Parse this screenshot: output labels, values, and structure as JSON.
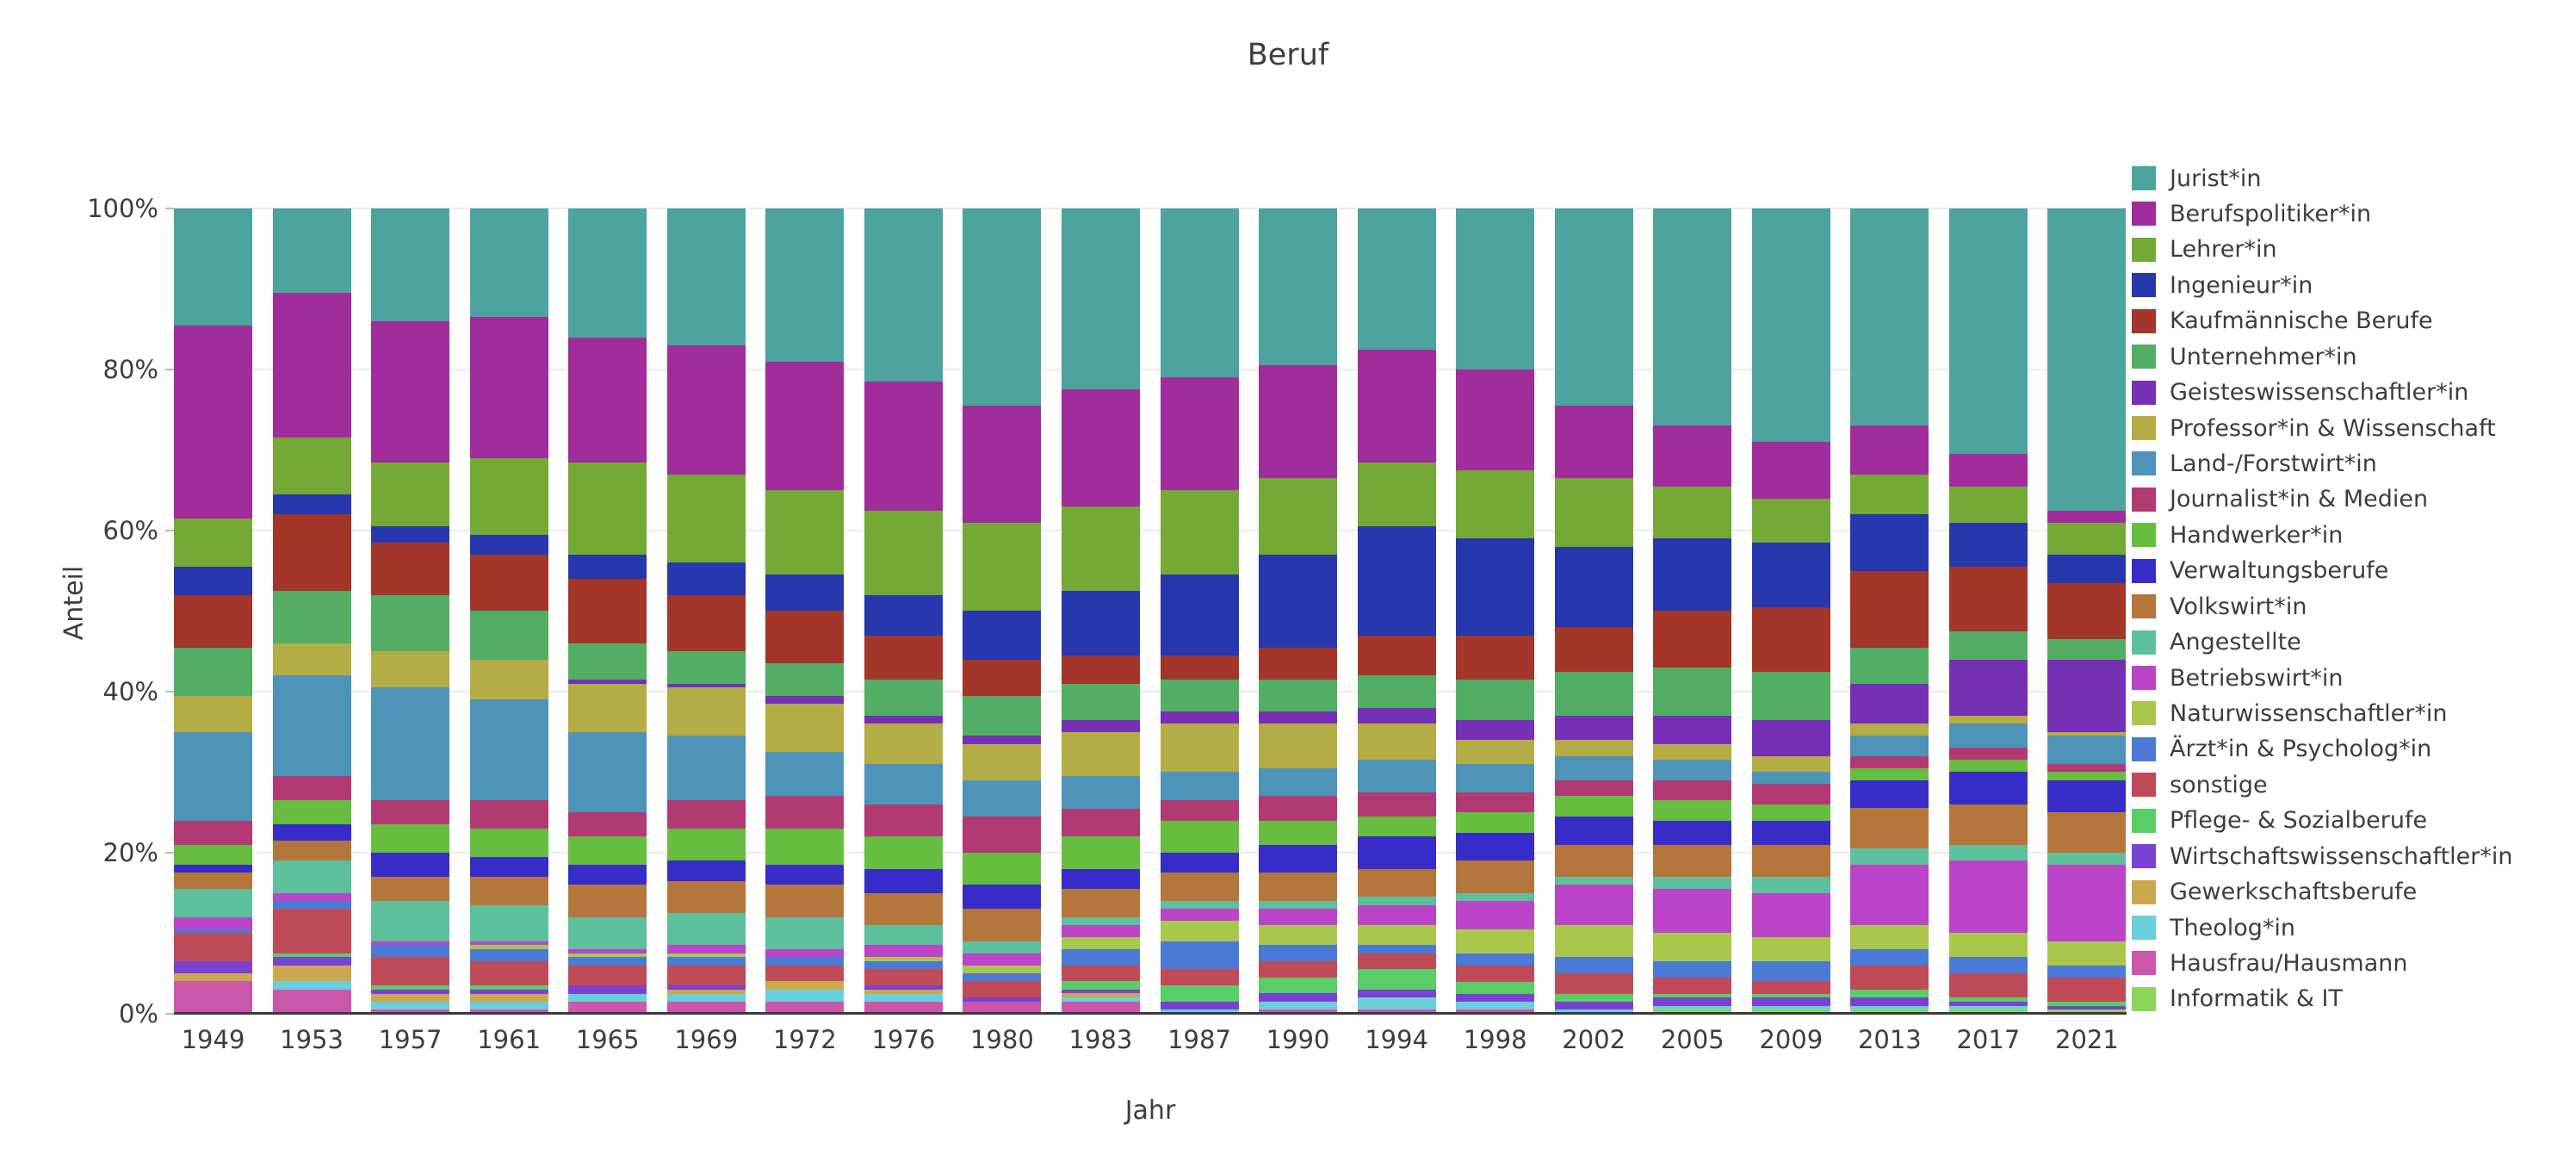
{
  "chart_data": {
    "type": "bar",
    "stacked": true,
    "normalized": "percent",
    "title": "Beruf",
    "xlabel": "Jahr",
    "ylabel": "Anteil",
    "ylim": [
      0,
      100
    ],
    "grid": true,
    "legend_position": "right",
    "grid_color": "#ebebeb",
    "axis_line_color": "#3a3a3a",
    "text_color": "#3d3d3d",
    "ytick_values": [
      0,
      20,
      40,
      60,
      80,
      100
    ],
    "ytick_labels": [
      "0%",
      "20%",
      "40%",
      "60%",
      "80%",
      "100%"
    ],
    "categories": [
      "1949",
      "1953",
      "1957",
      "1961",
      "1965",
      "1969",
      "1972",
      "1976",
      "1980",
      "1983",
      "1987",
      "1990",
      "1994",
      "1998",
      "2002",
      "2005",
      "2009",
      "2013",
      "2017",
      "2021"
    ],
    "series": [
      {
        "name": "Jurist*in",
        "color": "#4da39e",
        "values": [
          14.5,
          10.5,
          14,
          13.5,
          16,
          17,
          19,
          21.5,
          24.5,
          22.5,
          21,
          19.5,
          17.5,
          20,
          24.5,
          27,
          29,
          27,
          30.5,
          37.5
        ]
      },
      {
        "name": "Berufspolitiker*in",
        "color": "#a12c9c",
        "values": [
          24,
          18,
          17.5,
          17.5,
          15.5,
          16,
          16,
          16,
          14.5,
          14.5,
          14,
          14,
          14,
          12.5,
          9,
          7.5,
          7,
          6,
          4,
          1.5
        ]
      },
      {
        "name": "Lehrer*in",
        "color": "#74a936",
        "values": [
          6,
          7,
          8,
          9.5,
          11.5,
          11,
          10.5,
          10.5,
          11,
          10.5,
          10.5,
          9.5,
          8,
          8.5,
          8.5,
          6.5,
          5.5,
          5,
          4.5,
          4
        ]
      },
      {
        "name": "Ingenieur*in",
        "color": "#2737ae",
        "values": [
          3.5,
          2.5,
          2,
          2.5,
          3,
          4,
          4.5,
          5,
          6,
          8,
          10,
          11.5,
          13.5,
          12,
          10,
          9,
          8,
          7,
          5.5,
          3.5
        ]
      },
      {
        "name": "Kaufmännische Berufe",
        "color": "#a33529",
        "values": [
          6.5,
          9.5,
          6.5,
          7,
          8,
          7,
          6.5,
          5.5,
          4.5,
          3.5,
          3,
          4,
          5,
          5.5,
          5.5,
          7,
          8,
          9.5,
          8,
          7
        ]
      },
      {
        "name": "Unternehmer*in",
        "color": "#52ae64",
        "values": [
          6,
          6.5,
          7,
          6,
          4.5,
          4,
          4,
          4.5,
          5,
          4.5,
          4,
          4,
          4,
          5,
          5.5,
          6,
          6,
          4.5,
          3.5,
          2.5
        ]
      },
      {
        "name": "Geisteswissenschaftler*in",
        "color": "#7530b6",
        "values": [
          0,
          0,
          0,
          0,
          0.5,
          0.5,
          1,
          1,
          1,
          1.5,
          1.5,
          1.5,
          2,
          2.5,
          3,
          3.5,
          4.5,
          5,
          7,
          9
        ]
      },
      {
        "name": "Professor*in & Wissenschaft",
        "color": "#b4ac44",
        "values": [
          4.5,
          4,
          4.5,
          5,
          6,
          6,
          6,
          5,
          4.5,
          5.5,
          6,
          5.5,
          4.5,
          3,
          2,
          2,
          2,
          1.5,
          1,
          0.5
        ]
      },
      {
        "name": "Land-/Forstwirt*in",
        "color": "#4d94b8",
        "values": [
          11,
          12.5,
          14,
          12.5,
          10,
          8,
          5.5,
          5,
          4.5,
          4,
          3.5,
          3.5,
          4,
          3.5,
          3,
          2.5,
          1.5,
          2.5,
          3,
          3.5
        ]
      },
      {
        "name": "Journalist*in & Medien",
        "color": "#b23a72",
        "values": [
          3,
          3,
          3,
          3.5,
          3,
          3.5,
          4,
          4,
          4.5,
          3.5,
          2.5,
          3,
          3,
          2.5,
          2,
          2.5,
          2.5,
          1.5,
          1.5,
          1
        ]
      },
      {
        "name": "Handwerker*in",
        "color": "#66bd3f",
        "values": [
          2.5,
          3,
          3.5,
          3.5,
          3.5,
          4,
          4.5,
          4,
          4,
          4,
          4,
          3,
          2.5,
          2.5,
          2.5,
          2.5,
          2,
          1.5,
          1.5,
          1
        ]
      },
      {
        "name": "Verwaltungsberufe",
        "color": "#382cc8",
        "values": [
          1,
          2,
          3,
          2.5,
          2.5,
          2.5,
          2.5,
          3,
          3,
          2.5,
          2.5,
          3.5,
          4,
          3.5,
          3.5,
          3,
          3,
          3.5,
          4,
          4
        ]
      },
      {
        "name": "Volkswirt*in",
        "color": "#b5763b",
        "values": [
          2,
          2.5,
          3,
          3.5,
          4,
          4,
          4,
          4,
          4,
          3.5,
          3.5,
          3.5,
          3.5,
          4,
          4,
          4,
          4,
          5,
          5,
          5
        ]
      },
      {
        "name": "Angestellte",
        "color": "#5cc09c",
        "values": [
          3.5,
          4,
          5,
          4.5,
          4,
          4,
          4,
          2.5,
          1.5,
          1,
          1,
          1,
          1,
          1,
          1,
          1.5,
          2,
          2,
          2,
          1.5
        ]
      },
      {
        "name": "Betriebswirt*in",
        "color": "#bb44c8",
        "values": [
          1.5,
          1,
          0.5,
          0.5,
          0.5,
          1,
          1,
          1.5,
          1.5,
          1.5,
          1.5,
          2,
          2.5,
          3.5,
          5,
          5.5,
          5.5,
          7.5,
          9,
          9.5
        ]
      },
      {
        "name": "Naturwissenschaftler*in",
        "color": "#a9c84b",
        "values": [
          0,
          0,
          0,
          0.5,
          0.5,
          0.5,
          0,
          0.5,
          1,
          1.5,
          2.5,
          2.5,
          2.5,
          3,
          4,
          3.5,
          3,
          3,
          3,
          3
        ]
      },
      {
        "name": "Ärzt*in & Psycholog*in",
        "color": "#4b7ad6",
        "values": [
          0.5,
          1,
          1.5,
          1.5,
          1,
          1,
          1,
          1,
          1,
          2,
          3.5,
          2,
          1,
          1.5,
          2,
          2,
          2.5,
          2,
          2,
          1.5
        ]
      },
      {
        "name": "sonstige",
        "color": "#c04b58",
        "values": [
          3.5,
          5.5,
          3.5,
          3,
          2.5,
          2.5,
          2,
          2,
          2,
          2,
          2,
          2,
          2,
          2,
          2.5,
          2,
          1.5,
          3,
          3,
          3
        ]
      },
      {
        "name": "Pflege- & Sozialberufe",
        "color": "#58cd68",
        "values": [
          0,
          0.5,
          0.5,
          0.5,
          0,
          0,
          0,
          0,
          0,
          1,
          2,
          2,
          2.5,
          1.5,
          1,
          0.5,
          0.5,
          1,
          0.5,
          0.5
        ]
      },
      {
        "name": "Wirtschaftswissenschaftler*in",
        "color": "#7b41d2",
        "values": [
          1.5,
          1,
          0.5,
          0.5,
          1,
          0.5,
          0,
          0.5,
          0.5,
          0.5,
          1,
          1,
          1,
          1,
          1,
          1,
          1,
          1,
          0.5,
          0.5
        ]
      },
      {
        "name": "Gewerkschaftsberufe",
        "color": "#cba84e",
        "values": [
          1,
          2,
          1,
          1,
          0,
          0.5,
          1,
          0.5,
          0,
          0.5,
          0,
          0,
          0,
          0,
          0,
          0,
          0,
          0,
          0,
          0
        ]
      },
      {
        "name": "Theolog*in",
        "color": "#69cfdb",
        "values": [
          0,
          1,
          1,
          1,
          1,
          1,
          1.5,
          1,
          0,
          0.5,
          0.5,
          1,
          1.5,
          1,
          0.5,
          0.5,
          0.5,
          0.5,
          0.5,
          0
        ]
      },
      {
        "name": "Hausfrau/Hausmann",
        "color": "#cb57ab",
        "values": [
          4,
          3,
          0.5,
          0.5,
          1.5,
          1.5,
          1.5,
          1.5,
          1.5,
          1.5,
          0,
          0.5,
          0.5,
          0.5,
          0,
          0,
          0,
          0,
          0,
          0
        ]
      },
      {
        "name": "Informatik & IT",
        "color": "#8cd659",
        "values": [
          0,
          0,
          0,
          0,
          0,
          0,
          0,
          0,
          0,
          0,
          0,
          0,
          0,
          0,
          0,
          0.5,
          0.5,
          0.5,
          0.5,
          0.5
        ]
      }
    ]
  }
}
